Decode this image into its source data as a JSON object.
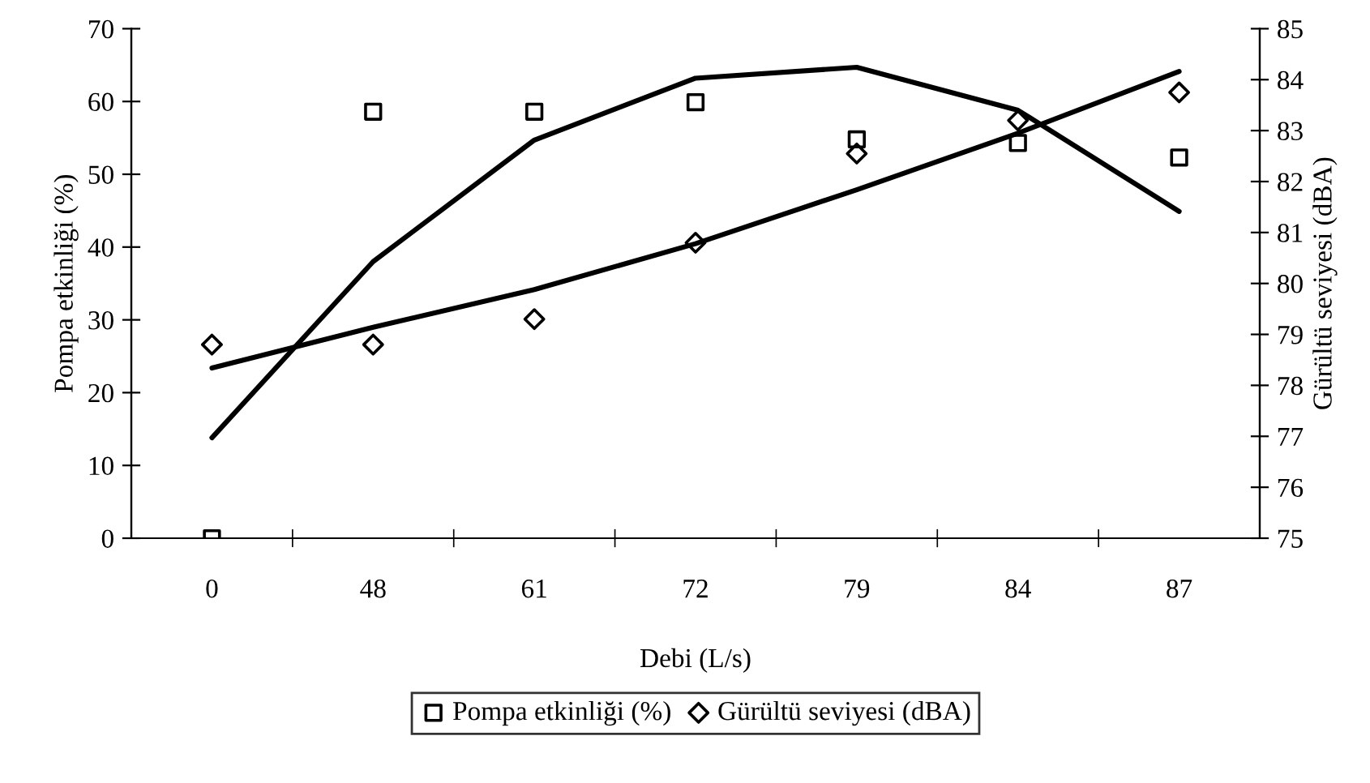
{
  "chart_data": {
    "type": "scatter",
    "xlabel": "Debi (L/s)",
    "ylabel": "Pompa etkinliği (%)",
    "y2label": "Gürültü seviyesi (dBA)",
    "categories": [
      "0",
      "48",
      "61",
      "72",
      "79",
      "84",
      "87"
    ],
    "ylim": [
      0,
      70
    ],
    "yticks": [
      0,
      10,
      20,
      30,
      40,
      50,
      60,
      70
    ],
    "y2lim": [
      75,
      85
    ],
    "y2ticks": [
      75,
      76,
      77,
      78,
      79,
      80,
      81,
      82,
      83,
      84,
      85
    ],
    "series": [
      {
        "name": "Pompa etkinliği (%)",
        "marker": "square",
        "color": "#000000",
        "values": [
          0,
          58.6,
          58.6,
          59.9,
          54.8,
          54.3,
          52.3
        ]
      },
      {
        "name": "Gürültü seviyesi (dBA)",
        "marker": "diamond",
        "color": "#000000",
        "axis": "y2",
        "values": [
          78.8,
          78.8,
          79.3,
          80.8,
          82.55,
          83.2,
          83.75
        ]
      },
      {
        "type": "line",
        "color": "#000000",
        "values": [
          13.8,
          38.0,
          54.7,
          63.2,
          64.7,
          58.8,
          44.9
        ]
      },
      {
        "type": "line",
        "color": "#000000",
        "axis": "y2",
        "values": [
          78.34,
          79.14,
          79.88,
          80.78,
          81.84,
          82.95,
          84.16
        ]
      }
    ],
    "grid": false,
    "legend": "bottom"
  }
}
